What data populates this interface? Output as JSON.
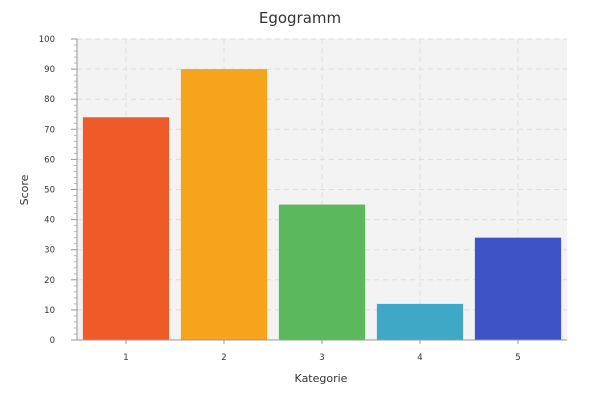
{
  "chart_data": {
    "type": "bar",
    "title": "Egogramm",
    "xlabel": "Kategorie",
    "ylabel": "Score",
    "categories": [
      "1",
      "2",
      "3",
      "4",
      "5"
    ],
    "values": [
      74,
      90,
      45,
      12,
      34
    ],
    "colors": [
      "#F05A28",
      "#F7A41D",
      "#5CB85C",
      "#3FA8C6",
      "#3E53C5"
    ],
    "ylim": [
      0,
      100
    ],
    "yticks": [
      "0",
      "10",
      "20",
      "30",
      "40",
      "50",
      "60",
      "70",
      "80",
      "90",
      "100"
    ],
    "grid": true,
    "legend": "none",
    "plot_background": "#F3F3F3",
    "grid_color": "#DCDCDC"
  }
}
